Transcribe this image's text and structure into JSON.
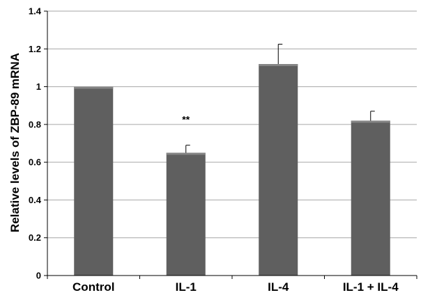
{
  "chart_data": {
    "type": "bar",
    "categories": [
      "Control",
      "IL-1",
      "IL-4",
      "IL-1 + IL-4"
    ],
    "values": [
      1.0,
      0.65,
      1.12,
      0.82
    ],
    "errors": [
      null,
      0.04,
      0.105,
      0.05
    ],
    "annotations": [
      "",
      "**",
      "",
      ""
    ],
    "ylabel": "Relative levels of ZBP-89 mRNA",
    "xlabel": "",
    "ylim": [
      0,
      1.4
    ],
    "yticks": [
      "0",
      "0.2",
      "0.4",
      "0.6",
      "0.8",
      "1",
      "1.2",
      "1.4"
    ],
    "grid": true,
    "legend": "none",
    "colors": {
      "bar": "#5f5f5f",
      "bar_top": "#858585",
      "grid": "#a6a6a6",
      "axis": "#000000"
    }
  }
}
